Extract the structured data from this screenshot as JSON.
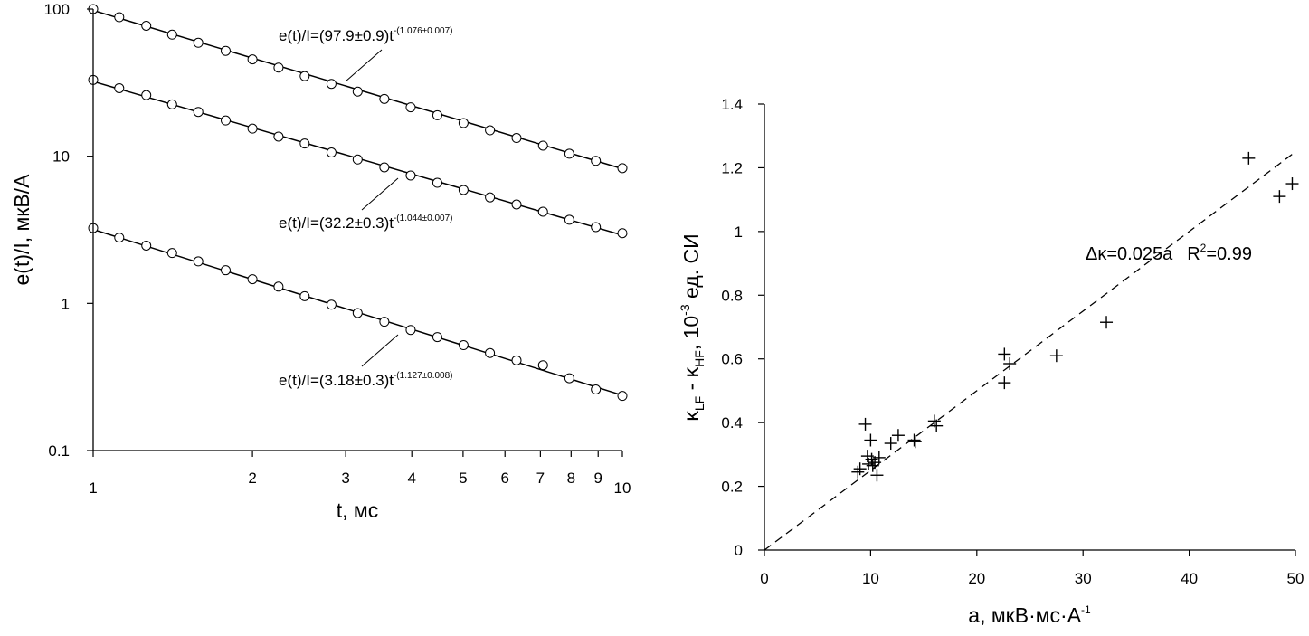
{
  "chart_data": [
    {
      "type": "scatter",
      "scale": "log-log",
      "xlabel": "t, мс",
      "ylabel": "e(t)/I, мкВ/А",
      "xlim": [
        1,
        10
      ],
      "ylim": [
        0.1,
        100
      ],
      "x_ticks": [
        1,
        2,
        3,
        4,
        5,
        6,
        7,
        8,
        9,
        10
      ],
      "x_tick_labels": [
        "1",
        "2",
        "3",
        "4",
        "5",
        "6",
        "7",
        "8",
        "9",
        "10"
      ],
      "y_ticks": [
        0.1,
        1,
        10,
        100
      ],
      "y_tick_labels": [
        "0.1",
        "1",
        "10",
        "100"
      ],
      "x": [
        1.0,
        1.12,
        1.26,
        1.41,
        1.58,
        1.78,
        2.0,
        2.24,
        2.51,
        2.82,
        3.16,
        3.55,
        3.98,
        4.47,
        5.01,
        5.62,
        6.31,
        7.08,
        7.94,
        8.91,
        10.0
      ],
      "series": [
        {
          "marker": "circle",
          "values": [
            100,
            88,
            77,
            67,
            59,
            52,
            45.5,
            40,
            35,
            31,
            27.5,
            24.5,
            21.5,
            19,
            16.8,
            15,
            13.3,
            11.8,
            10.4,
            9.3,
            8.3
          ],
          "fit": {
            "a": 97.9,
            "b": -1.076
          },
          "annotation": {
            "base": "e(t)/I=(97.9±0.9)t",
            "exponent": "-(1.076±0.007)"
          }
        },
        {
          "marker": "circle",
          "values": [
            33,
            29,
            26,
            22.5,
            20,
            17.5,
            15.4,
            13.6,
            12.2,
            10.6,
            9.5,
            8.4,
            7.4,
            6.6,
            5.9,
            5.25,
            4.7,
            4.2,
            3.7,
            3.3,
            3.0
          ],
          "fit": {
            "a": 32.2,
            "b": -1.044
          },
          "annotation": {
            "base": "e(t)/I=(32.2±0.3)t",
            "exponent": "-(1.044±0.007)"
          }
        },
        {
          "marker": "circle",
          "values": [
            3.25,
            2.8,
            2.47,
            2.2,
            1.93,
            1.68,
            1.46,
            1.3,
            1.12,
            0.98,
            0.86,
            0.75,
            0.66,
            0.59,
            0.52,
            0.46,
            0.41,
            0.38,
            0.31,
            0.26,
            0.235
          ],
          "fit": {
            "a": 3.18,
            "b": -1.127
          },
          "annotation": {
            "base": "e(t)/I=(3.18±0.3)t",
            "exponent": "-(1.127±0.008)"
          }
        }
      ]
    },
    {
      "type": "scatter",
      "xlabel": {
        "base": "a, мкВ·мс·А",
        "sup": "-1"
      },
      "ylabel": {
        "k1": "κ",
        "sub1": "LF",
        "mid": " - κ",
        "sub2": "HF",
        "tail": ", 10",
        "sup": "-3",
        "end": " ед. СИ"
      },
      "xlim": [
        0,
        50
      ],
      "ylim": [
        0,
        1.4
      ],
      "x_ticks": [
        0,
        10,
        20,
        30,
        40,
        50
      ],
      "x_tick_labels": [
        "0",
        "10",
        "20",
        "30",
        "40",
        "50"
      ],
      "y_ticks": [
        0,
        0.2,
        0.4,
        0.6,
        0.8,
        1.0,
        1.2,
        1.4
      ],
      "y_tick_labels": [
        "0",
        "0.2",
        "0.4",
        "0.6",
        "0.8",
        "1",
        "1.2",
        "1.4"
      ],
      "points": [
        [
          8.8,
          0.245
        ],
        [
          9.0,
          0.255
        ],
        [
          9.5,
          0.395
        ],
        [
          9.7,
          0.295
        ],
        [
          9.8,
          0.27
        ],
        [
          10.0,
          0.345
        ],
        [
          10.1,
          0.285
        ],
        [
          10.2,
          0.265
        ],
        [
          10.4,
          0.275
        ],
        [
          10.6,
          0.235
        ],
        [
          10.8,
          0.29
        ],
        [
          11.9,
          0.335
        ],
        [
          12.6,
          0.36
        ],
        [
          14.1,
          0.345
        ],
        [
          14.2,
          0.34
        ],
        [
          16.0,
          0.405
        ],
        [
          16.2,
          0.39
        ],
        [
          22.6,
          0.615
        ],
        [
          22.6,
          0.525
        ],
        [
          23.1,
          0.585
        ],
        [
          27.5,
          0.61
        ],
        [
          32.2,
          0.715
        ],
        [
          45.6,
          1.23
        ],
        [
          48.5,
          1.11
        ],
        [
          49.7,
          1.15
        ]
      ],
      "fit": {
        "slope": 0.025,
        "style": "dashed"
      },
      "annotation": {
        "eq": "Δκ=0.025a",
        "r_base": "R",
        "r_sup": "2",
        "r_tail": "=0.99"
      }
    }
  ]
}
